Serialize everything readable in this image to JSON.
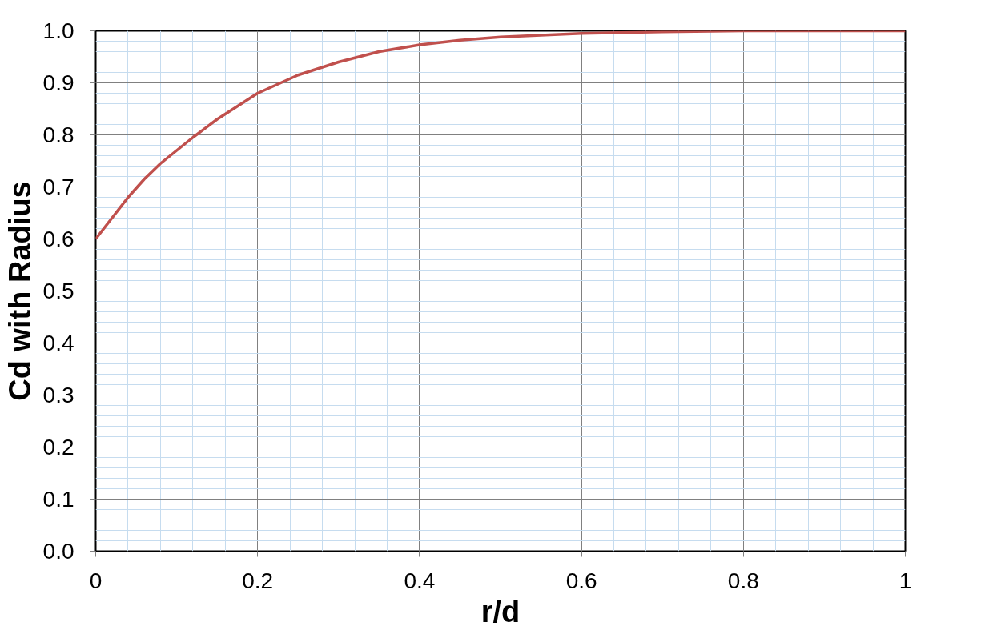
{
  "chart_data": {
    "type": "line",
    "xlabel": "r/d",
    "ylabel": "Cd with Radius",
    "x": [
      0,
      0.02,
      0.04,
      0.06,
      0.08,
      0.1,
      0.12,
      0.15,
      0.2,
      0.25,
      0.3,
      0.35,
      0.4,
      0.45,
      0.5,
      0.6,
      0.7,
      0.8,
      0.9,
      1.0
    ],
    "series": [
      {
        "color": "#c0504d",
        "values": [
          0.6,
          0.64,
          0.68,
          0.715,
          0.745,
          0.77,
          0.795,
          0.83,
          0.88,
          0.915,
          0.94,
          0.96,
          0.973,
          0.982,
          0.988,
          0.995,
          0.998,
          1.0,
          1.0,
          1.0
        ]
      }
    ],
    "xlim": [
      0,
      1
    ],
    "ylim": [
      0,
      1
    ],
    "xticks": [
      0,
      0.2,
      0.4,
      0.6,
      0.8,
      1,
      {
        "value": 0.04,
        "label": null
      },
      {
        "value": 0.08,
        "label": null
      },
      {
        "value": 0.12,
        "label": null
      },
      {
        "value": 0.16,
        "label": null
      },
      {
        "value": 0.24,
        "label": null
      },
      {
        "value": 0.28,
        "label": null
      },
      {
        "value": 0.32,
        "label": null
      },
      {
        "value": 0.36,
        "label": null
      },
      {
        "value": 0.44,
        "label": null
      },
      {
        "value": 0.48,
        "label": null
      },
      {
        "value": 0.52,
        "label": null
      },
      {
        "value": 0.56,
        "label": null
      },
      {
        "value": 0.64,
        "label": null
      },
      {
        "value": 0.68,
        "label": null
      },
      {
        "value": 0.72,
        "label": null
      },
      {
        "value": 0.76,
        "label": null
      },
      {
        "value": 0.84,
        "label": null
      },
      {
        "value": 0.88,
        "label": null
      },
      {
        "value": 0.92,
        "label": null
      },
      {
        "value": 0.96,
        "label": null
      }
    ],
    "yticks": [
      {
        "value": 0,
        "label": "0.0"
      },
      0.1,
      0.2,
      0.3,
      0.4,
      0.5,
      0.6,
      0.7,
      0.8,
      0.9,
      {
        "value": 1,
        "label": "1.0"
      },
      {
        "value": 0.02,
        "label": null
      },
      {
        "value": 0.04,
        "label": null
      },
      {
        "value": 0.06,
        "label": null
      },
      {
        "value": 0.08,
        "label": null
      },
      {
        "value": 0.12,
        "label": null
      },
      {
        "value": 0.14,
        "label": null
      },
      {
        "value": 0.16,
        "label": null
      },
      {
        "value": 0.18,
        "label": null
      },
      {
        "value": 0.22,
        "label": null
      },
      {
        "value": 0.24,
        "label": null
      },
      {
        "value": 0.26,
        "label": null
      },
      {
        "value": 0.28,
        "label": null
      },
      {
        "value": 0.32,
        "label": null
      },
      {
        "value": 0.34,
        "label": null
      },
      {
        "value": 0.36,
        "label": null
      },
      {
        "value": 0.38,
        "label": null
      },
      {
        "value": 0.42,
        "label": null
      },
      {
        "value": 0.44,
        "label": null
      },
      {
        "value": 0.46,
        "label": null
      },
      {
        "value": 0.48,
        "label": null
      },
      {
        "value": 0.52,
        "label": null
      },
      {
        "value": 0.54,
        "label": null
      },
      {
        "value": 0.56,
        "label": null
      },
      {
        "value": 0.58,
        "label": null
      },
      {
        "value": 0.62,
        "label": null
      },
      {
        "value": 0.64,
        "label": null
      },
      {
        "value": 0.66,
        "label": null
      },
      {
        "value": 0.68,
        "label": null
      },
      {
        "value": 0.72,
        "label": null
      },
      {
        "value": 0.74,
        "label": null
      },
      {
        "value": 0.76,
        "label": null
      },
      {
        "value": 0.78,
        "label": null
      },
      {
        "value": 0.82,
        "label": null
      },
      {
        "value": 0.84,
        "label": null
      },
      {
        "value": 0.86,
        "label": null
      },
      {
        "value": 0.88,
        "label": null
      },
      {
        "value": 0.92,
        "label": null
      },
      {
        "value": 0.94,
        "label": null
      },
      {
        "value": 0.96,
        "label": null
      },
      {
        "value": 0.98,
        "label": null
      }
    ],
    "grid": true,
    "marker": "none",
    "line_style": "solid"
  }
}
